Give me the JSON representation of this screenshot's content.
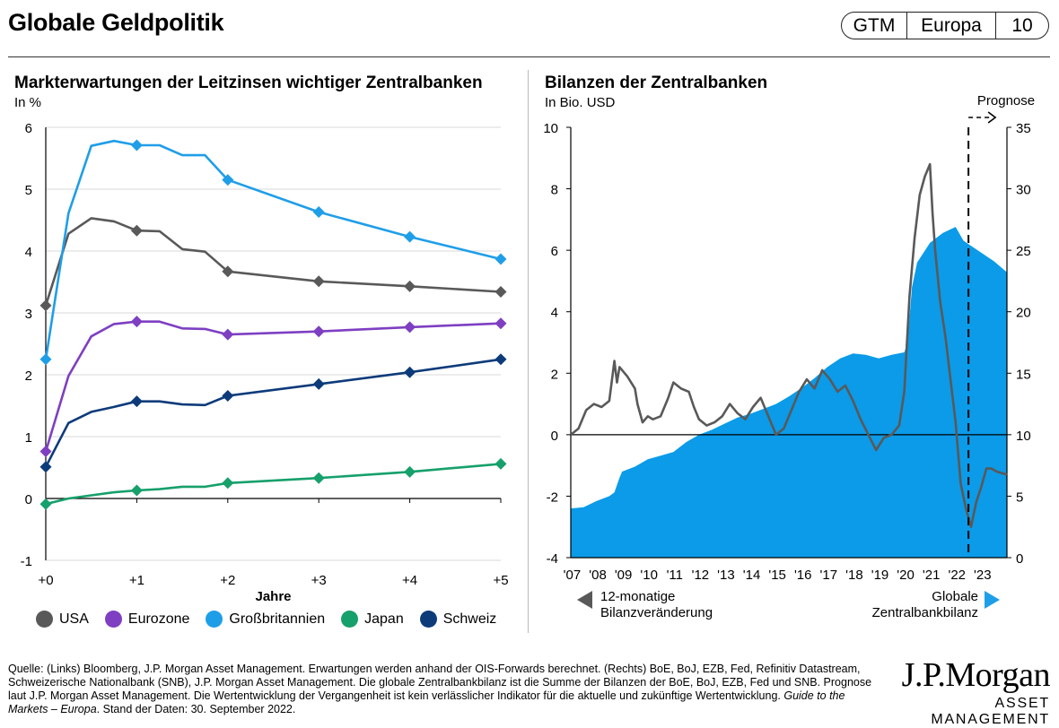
{
  "header": {
    "title": "Globale Geldpolitik",
    "badge": [
      "GTM",
      "Europa",
      "10"
    ]
  },
  "chart_data": [
    {
      "type": "line",
      "title": "Markterwartungen der Leitzinsen wichtiger Zentralbanken",
      "subtitle": "In %",
      "xlabel": "Jahre",
      "ylabel": "",
      "ylim": [
        -1,
        6
      ],
      "xlim": [
        0,
        5
      ],
      "x_ticks": [
        "+0",
        "+1",
        "+2",
        "+3",
        "+4",
        "+5"
      ],
      "y_ticks": [
        "6",
        "5",
        "4",
        "3",
        "2",
        "1",
        "0",
        "-1"
      ],
      "legend_position": "bottom",
      "series": [
        {
          "name": "USA",
          "color": "#595959",
          "x": [
            0,
            0.25,
            0.5,
            0.75,
            1,
            1.25,
            1.5,
            1.75,
            2,
            3,
            4,
            5
          ],
          "y": [
            3.12,
            4.28,
            4.53,
            4.48,
            4.33,
            4.32,
            4.03,
            3.99,
            3.67,
            3.51,
            3.43,
            3.34
          ],
          "markers": [
            0,
            1,
            2,
            3,
            4,
            5
          ]
        },
        {
          "name": "Eurozone",
          "color": "#7e3fc2",
          "x": [
            0,
            0.25,
            0.5,
            0.75,
            1,
            1.25,
            1.5,
            1.75,
            2,
            3,
            4,
            5
          ],
          "y": [
            0.76,
            1.98,
            2.62,
            2.82,
            2.86,
            2.86,
            2.75,
            2.74,
            2.65,
            2.7,
            2.77,
            2.83
          ],
          "markers": [
            0,
            1,
            2,
            3,
            4,
            5
          ]
        },
        {
          "name": "Großbritannien",
          "color": "#1f9ee8",
          "x": [
            0,
            0.25,
            0.5,
            0.75,
            1,
            1.25,
            1.5,
            1.75,
            2,
            3,
            4,
            5
          ],
          "y": [
            2.25,
            4.61,
            5.7,
            5.78,
            5.71,
            5.71,
            5.55,
            5.55,
            5.15,
            4.63,
            4.23,
            3.87
          ],
          "markers": [
            0,
            1,
            2,
            3,
            4,
            5
          ]
        },
        {
          "name": "Japan",
          "color": "#16a06b",
          "x": [
            0,
            0.25,
            0.5,
            0.75,
            1,
            1.25,
            1.5,
            1.75,
            2,
            3,
            4,
            5
          ],
          "y": [
            -0.09,
            0.0,
            0.05,
            0.1,
            0.13,
            0.15,
            0.19,
            0.19,
            0.25,
            0.33,
            0.43,
            0.56
          ],
          "markers": [
            0,
            1,
            2,
            3,
            4,
            5
          ]
        },
        {
          "name": "Schweiz",
          "color": "#0d3b7a",
          "x": [
            0,
            0.25,
            0.5,
            0.75,
            1,
            1.25,
            1.5,
            1.75,
            2,
            3,
            4,
            5
          ],
          "y": [
            0.51,
            1.22,
            1.4,
            1.48,
            1.57,
            1.57,
            1.52,
            1.51,
            1.66,
            1.85,
            2.04,
            2.25
          ],
          "markers": [
            0,
            1,
            2,
            3,
            4,
            5
          ]
        }
      ]
    },
    {
      "type": "area",
      "title": "Bilanzen der Zentralbanken",
      "subtitle": "In Bio. USD",
      "annotation": "Prognose",
      "forecast_start": 2022.5,
      "xlim": [
        2007,
        2024.0
      ],
      "x_ticks": [
        "'07",
        "'08",
        "'09",
        "'10",
        "'11",
        "'12",
        "'13",
        "'14",
        "'15",
        "'16",
        "'17",
        "'18",
        "'19",
        "'20",
        "'21",
        "'22",
        "'23"
      ],
      "y_left": {
        "range": [
          -4,
          10
        ],
        "ticks": [
          "10",
          "8",
          "6",
          "4",
          "2",
          "0",
          "-2",
          "-4"
        ]
      },
      "y_right": {
        "range": [
          0,
          35
        ],
        "ticks": [
          "35",
          "30",
          "25",
          "20",
          "15",
          "10",
          "5",
          "0"
        ]
      },
      "bottom_left_label": "12-monatige Bilanzveränderung",
      "bottom_right_label": "Globale Zentralbankbilanz",
      "series": [
        {
          "name": "Globale Zentralbankbilanz",
          "axis": "right",
          "style": "area",
          "color": "#0b9be8",
          "x": [
            2007.0,
            2007.5,
            2008.0,
            2008.5,
            2008.7,
            2008.9,
            2009.0,
            2009.5,
            2010.0,
            2010.5,
            2011.0,
            2011.5,
            2012.0,
            2012.5,
            2013.0,
            2013.5,
            2014.0,
            2014.5,
            2015.0,
            2015.5,
            2016.0,
            2016.5,
            2017.0,
            2017.5,
            2018.0,
            2018.5,
            2019.0,
            2019.5,
            2020.0,
            2020.1,
            2020.2,
            2020.3,
            2020.5,
            2021.0,
            2021.5,
            2022.0,
            2022.3,
            2022.5,
            2023.0,
            2023.5,
            2024.0
          ],
          "y": [
            4.0,
            4.1,
            4.6,
            5.0,
            5.3,
            6.5,
            7.0,
            7.4,
            8.0,
            8.3,
            8.6,
            9.4,
            10.0,
            10.4,
            10.9,
            11.4,
            11.7,
            12.1,
            12.5,
            13.1,
            13.8,
            14.6,
            15.5,
            16.2,
            16.6,
            16.5,
            16.2,
            16.5,
            16.7,
            17.3,
            19.5,
            22.0,
            24.0,
            25.6,
            26.4,
            26.9,
            25.8,
            25.5,
            24.8,
            24.1,
            23.2
          ]
        },
        {
          "name": "12-monatige Bilanzveränderung",
          "axis": "left",
          "style": "line",
          "color": "#595959",
          "x": [
            2007.0,
            2007.3,
            2007.6,
            2007.9,
            2008.2,
            2008.5,
            2008.7,
            2008.8,
            2008.9,
            2009.0,
            2009.2,
            2009.5,
            2009.6,
            2009.8,
            2010.0,
            2010.2,
            2010.5,
            2010.8,
            2011.0,
            2011.3,
            2011.6,
            2011.8,
            2012.0,
            2012.3,
            2012.6,
            2012.9,
            2013.2,
            2013.5,
            2013.8,
            2014.1,
            2014.4,
            2014.7,
            2015.0,
            2015.3,
            2015.6,
            2015.9,
            2016.2,
            2016.5,
            2016.8,
            2017.1,
            2017.4,
            2017.7,
            2018.0,
            2018.3,
            2018.6,
            2018.9,
            2019.2,
            2019.5,
            2019.8,
            2020.0,
            2020.2,
            2020.4,
            2020.6,
            2020.8,
            2021.0,
            2021.1,
            2021.2,
            2021.4,
            2021.6,
            2021.8,
            2022.0,
            2022.2,
            2022.4,
            2022.6,
            2022.8,
            2023.0,
            2023.2,
            2023.4,
            2023.6,
            2024.0
          ],
          "y": [
            0.0,
            0.2,
            0.8,
            1.0,
            0.9,
            1.1,
            2.4,
            1.7,
            2.2,
            2.1,
            1.9,
            1.5,
            1.0,
            0.4,
            0.6,
            0.5,
            0.6,
            1.2,
            1.7,
            1.5,
            1.4,
            0.9,
            0.5,
            0.3,
            0.4,
            0.6,
            1.0,
            0.7,
            0.5,
            0.9,
            1.2,
            0.6,
            0.0,
            0.2,
            0.8,
            1.4,
            1.8,
            1.5,
            2.1,
            1.8,
            1.4,
            1.6,
            1.1,
            0.5,
            0.0,
            -0.5,
            -0.1,
            0.0,
            0.3,
            1.4,
            4.5,
            6.4,
            7.8,
            8.4,
            8.8,
            7.2,
            6.0,
            4.3,
            3.2,
            1.8,
            0.4,
            -1.6,
            -2.4,
            -3.0,
            -2.2,
            -1.7,
            -1.1,
            -1.1,
            -1.2,
            -1.3
          ]
        }
      ]
    }
  ],
  "footer": {
    "source": "Quelle: (Links) Bloomberg, J.P. Morgan Asset Management. Erwartungen werden anhand der OIS-Forwards berechnet. (Rechts) BoE, BoJ, EZB, Fed, Refinitiv Datastream, Schweizerische Nationalbank (SNB), J.P. Morgan Asset Management. Die globale Zentralbankbilanz ist die Summe der Bilanzen der BoE, BoJ, EZB, Fed und SNB. Prognose laut J.P. Morgan Asset Management. Die Wertentwicklung der Vergangenheit ist kein verlässlicher Indikator für die aktuelle und zukünftige Wertentwicklung. ",
    "guide": "Guide to the Markets – Europa",
    "date": ". Stand der Daten: 30. September 2022.",
    "logo_main": "J.P.Morgan",
    "logo_sub": "ASSET MANAGEMENT"
  }
}
